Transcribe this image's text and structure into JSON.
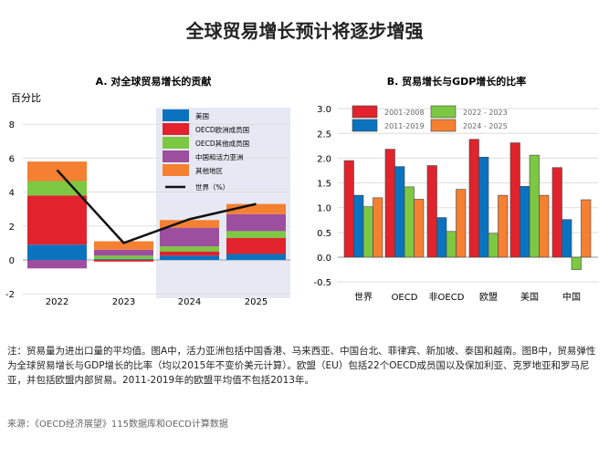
{
  "title": "全球贸易增长预计将逐步增强",
  "chart_data": [
    {
      "type": "bar",
      "stacked": true,
      "title": "A. 对全球贸易增长的贡献",
      "ylabel": "百分比",
      "ylim": [
        -2,
        8
      ],
      "yticks": [
        -2,
        0,
        2,
        4,
        6,
        8
      ],
      "categories": [
        "2022",
        "2023",
        "2024",
        "2025"
      ],
      "shaded_from": "2024",
      "series": [
        {
          "name": "美国",
          "color": "#0b72c0",
          "values": [
            0.9,
            0.05,
            0.25,
            0.35
          ]
        },
        {
          "name": "OECD欧洲成员国",
          "color": "#e0232c",
          "values": [
            2.9,
            -0.1,
            0.25,
            0.95
          ]
        },
        {
          "name": "OECD其他成员国",
          "color": "#7dc843",
          "values": [
            0.85,
            0.2,
            0.3,
            0.4
          ]
        },
        {
          "name": "中国和活力亚洲",
          "color": "#9c4f9f",
          "values": [
            -0.5,
            0.35,
            1.1,
            1.0
          ]
        },
        {
          "name": "其他地区",
          "color": "#f58032",
          "values": [
            1.15,
            0.5,
            0.45,
            0.6
          ]
        }
      ],
      "line": {
        "name": "世界（%）",
        "color": "#111111",
        "values": [
          5.3,
          1.0,
          2.4,
          3.3
        ]
      },
      "legend": "top-right",
      "grid": true
    },
    {
      "type": "bar",
      "title": "B. 贸易增长与GDP增长的比率",
      "ylim": [
        -0.5,
        3.0
      ],
      "yticks": [
        "-0.5",
        "0.0",
        "0.5",
        "1.0",
        "1.5",
        "2.0",
        "2.5",
        "3.0"
      ],
      "categories": [
        "世界",
        "OECD",
        "非OECD",
        "欧盟",
        "美国",
        "中国"
      ],
      "series": [
        {
          "name": "2001-2008",
          "color": "#e0232c",
          "values": [
            1.95,
            2.18,
            1.85,
            2.38,
            2.31,
            1.81
          ]
        },
        {
          "name": "2011-2019",
          "color": "#0b72c0",
          "values": [
            1.25,
            1.83,
            0.8,
            2.02,
            1.43,
            0.76
          ]
        },
        {
          "name": "2022 - 2023",
          "color": "#7dc843",
          "values": [
            1.02,
            1.42,
            0.52,
            0.48,
            2.06,
            -0.25
          ]
        },
        {
          "name": "2024 - 2025",
          "color": "#f58032",
          "values": [
            1.2,
            1.17,
            1.37,
            1.25,
            1.25,
            1.16
          ]
        }
      ],
      "legend": "top",
      "grid": true
    }
  ],
  "note": "注：贸易量为进出口量的平均值。图A中，活力亚洲包括中国香港、马来西亚、中国台北、菲律宾、新加坡、泰国和越南。图B中，贸易弹性为全球贸易增长与GDP增长的比率（均以2015年不变价美元计算）。欧盟（EU）包括22个OECD成员国以及保加利亚、克罗地亚和罗马尼亚，并包括欧盟内部贸易。2011-2019年的欧盟平均值不包括2013年。",
  "source": "来源：《OECD经济展望》115数据库和OECD计算数据"
}
